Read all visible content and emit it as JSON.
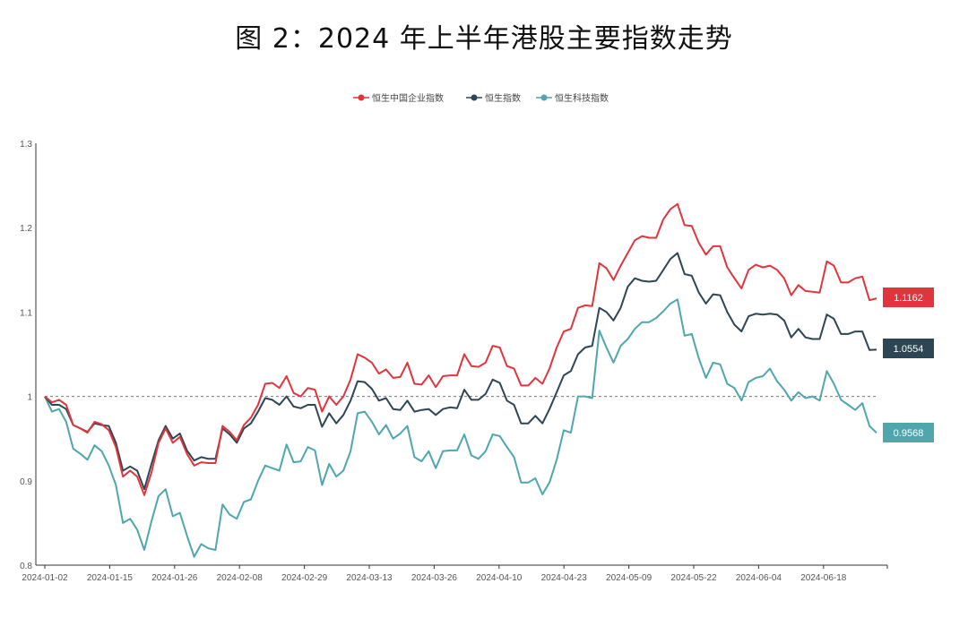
{
  "title": "图 2：2024 年上半年港股主要指数走势",
  "chart_data": {
    "type": "line",
    "title": "图 2：2024 年上半年港股主要指数走势",
    "xlabel": "",
    "ylabel": "",
    "ylim": [
      0.8,
      1.3
    ],
    "yticks": [
      "0.8",
      "0.9",
      "1",
      "1.1",
      "1.2",
      "1.3"
    ],
    "xticks": [
      "2024-01-02",
      "2024-01-15",
      "2024-01-26",
      "2024-02-08",
      "2024-02-29",
      "2024-03-13",
      "2024-03-26",
      "2024-04-10",
      "2024-04-23",
      "2024-05-09",
      "2024-05-22",
      "2024-06-04",
      "2024-06-18"
    ],
    "reference_line": 1.0,
    "legend_position": "top-center",
    "series": [
      {
        "name": "恒生中国企业指数",
        "color": "#e0353d",
        "end_label": "1.1162",
        "values": [
          1.0,
          0.993,
          0.996,
          0.99,
          0.966,
          0.962,
          0.957,
          0.97,
          0.967,
          0.96,
          0.94,
          0.905,
          0.912,
          0.905,
          0.883,
          0.91,
          0.945,
          0.962,
          0.945,
          0.952,
          0.932,
          0.918,
          0.922,
          0.921,
          0.921,
          0.965,
          0.958,
          0.948,
          0.966,
          0.975,
          0.99,
          1.015,
          1.016,
          1.01,
          1.024,
          1.004,
          1.0,
          1.01,
          1.008,
          0.982,
          1.0,
          0.99,
          1.0,
          1.02,
          1.05,
          1.046,
          1.04,
          1.027,
          1.032,
          1.022,
          1.023,
          1.04,
          1.015,
          1.014,
          1.025,
          1.011,
          1.024,
          1.025,
          1.025,
          1.05,
          1.036,
          1.035,
          1.04,
          1.06,
          1.058,
          1.036,
          1.033,
          1.013,
          1.013,
          1.022,
          1.015,
          1.033,
          1.058,
          1.077,
          1.08,
          1.105,
          1.108,
          1.107,
          1.158,
          1.152,
          1.138,
          1.155,
          1.17,
          1.185,
          1.19,
          1.188,
          1.188,
          1.21,
          1.222,
          1.228,
          1.203,
          1.202,
          1.182,
          1.168,
          1.178,
          1.178,
          1.153,
          1.14,
          1.128,
          1.15,
          1.156,
          1.153,
          1.155,
          1.15,
          1.14,
          1.12,
          1.132,
          1.125,
          1.124,
          1.123,
          1.16,
          1.155,
          1.135,
          1.135,
          1.14,
          1.142,
          1.114,
          1.1162
        ]
      },
      {
        "name": "恒生指数",
        "color": "#2e4653",
        "end_label": "1.0554",
        "values": [
          1.0,
          0.99,
          0.99,
          0.985,
          0.966,
          0.962,
          0.958,
          0.968,
          0.966,
          0.965,
          0.945,
          0.912,
          0.917,
          0.912,
          0.89,
          0.92,
          0.948,
          0.965,
          0.95,
          0.956,
          0.936,
          0.924,
          0.928,
          0.926,
          0.926,
          0.962,
          0.955,
          0.945,
          0.962,
          0.968,
          0.982,
          0.998,
          0.996,
          0.99,
          1.0,
          0.988,
          0.986,
          0.99,
          0.99,
          0.964,
          0.98,
          0.968,
          0.978,
          0.995,
          1.018,
          1.017,
          1.009,
          0.995,
          0.998,
          0.985,
          0.984,
          0.995,
          0.982,
          0.984,
          0.985,
          0.978,
          0.985,
          0.987,
          0.986,
          1.008,
          0.996,
          0.996,
          1.003,
          1.02,
          1.016,
          0.995,
          0.99,
          0.968,
          0.968,
          0.977,
          0.968,
          0.985,
          1.005,
          1.025,
          1.03,
          1.05,
          1.058,
          1.06,
          1.105,
          1.1,
          1.09,
          1.105,
          1.13,
          1.14,
          1.137,
          1.136,
          1.137,
          1.15,
          1.163,
          1.17,
          1.145,
          1.143,
          1.123,
          1.11,
          1.121,
          1.12,
          1.1,
          1.085,
          1.077,
          1.095,
          1.098,
          1.097,
          1.098,
          1.097,
          1.09,
          1.07,
          1.08,
          1.07,
          1.068,
          1.068,
          1.097,
          1.092,
          1.074,
          1.074,
          1.077,
          1.077,
          1.055,
          1.0554
        ]
      },
      {
        "name": "恒生科技指数",
        "color": "#4fa6ad",
        "end_label": "0.9568",
        "values": [
          1.0,
          0.982,
          0.985,
          0.97,
          0.938,
          0.932,
          0.925,
          0.942,
          0.935,
          0.918,
          0.895,
          0.85,
          0.855,
          0.842,
          0.818,
          0.852,
          0.882,
          0.89,
          0.858,
          0.862,
          0.835,
          0.81,
          0.825,
          0.82,
          0.818,
          0.872,
          0.86,
          0.855,
          0.875,
          0.878,
          0.9,
          0.918,
          0.915,
          0.912,
          0.943,
          0.922,
          0.923,
          0.94,
          0.936,
          0.895,
          0.92,
          0.905,
          0.912,
          0.935,
          0.98,
          0.982,
          0.97,
          0.955,
          0.966,
          0.95,
          0.956,
          0.965,
          0.928,
          0.923,
          0.935,
          0.915,
          0.935,
          0.936,
          0.936,
          0.955,
          0.93,
          0.926,
          0.935,
          0.955,
          0.953,
          0.94,
          0.928,
          0.898,
          0.898,
          0.903,
          0.884,
          0.898,
          0.925,
          0.96,
          0.957,
          1.0,
          1.0,
          0.998,
          1.078,
          1.058,
          1.04,
          1.06,
          1.068,
          1.08,
          1.088,
          1.088,
          1.093,
          1.101,
          1.11,
          1.115,
          1.072,
          1.074,
          1.045,
          1.022,
          1.04,
          1.038,
          1.015,
          1.01,
          0.995,
          1.017,
          1.022,
          1.024,
          1.033,
          1.018,
          1.008,
          0.995,
          1.005,
          0.998,
          1.0,
          0.995,
          1.03,
          1.015,
          0.996,
          0.99,
          0.984,
          0.992,
          0.965,
          0.9568
        ]
      }
    ]
  }
}
